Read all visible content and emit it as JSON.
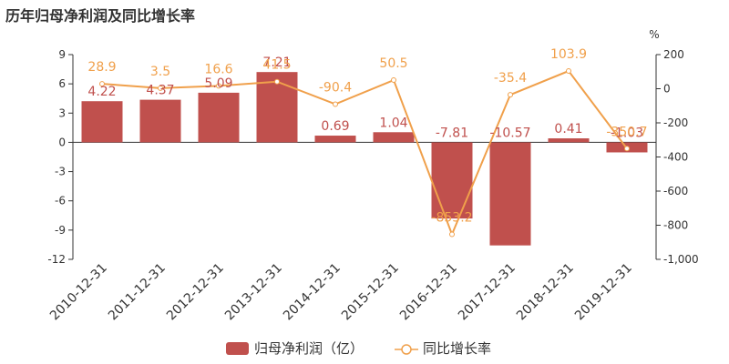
{
  "chart_data": {
    "title": "历年归母净利润及同比增长率",
    "type": "bar",
    "categories": [
      "2010-12-31",
      "2011-12-31",
      "2012-12-31",
      "2013-12-31",
      "2014-12-31",
      "2015-12-31",
      "2016-12-31",
      "2017-12-31",
      "2018-12-31",
      "2019-12-31"
    ],
    "series": [
      {
        "name": "归母净利润（亿）",
        "type": "bar",
        "axis": "left",
        "color": "#c0504d",
        "values": [
          4.22,
          4.37,
          5.09,
          7.21,
          0.69,
          1.04,
          -7.81,
          -10.57,
          0.41,
          -1.03
        ]
      },
      {
        "name": "同比增长率",
        "type": "line",
        "axis": "right",
        "color": "#f0a04b",
        "values": [
          28.9,
          3.5,
          16.6,
          41.5,
          -90.4,
          50.5,
          -853.2,
          -35.4,
          103.9,
          -350.7
        ]
      }
    ],
    "left_axis": {
      "ylim": [
        -12,
        9
      ],
      "ticks": [
        9,
        6,
        3,
        0,
        -3,
        -6,
        -9,
        -12
      ]
    },
    "right_axis": {
      "unit": "%",
      "ylim": [
        -1000,
        200
      ],
      "ticks": [
        "200",
        "0",
        "-200",
        "-400",
        "-600",
        "-800",
        "-1,000"
      ]
    },
    "legend": {
      "position": "bottom"
    }
  }
}
